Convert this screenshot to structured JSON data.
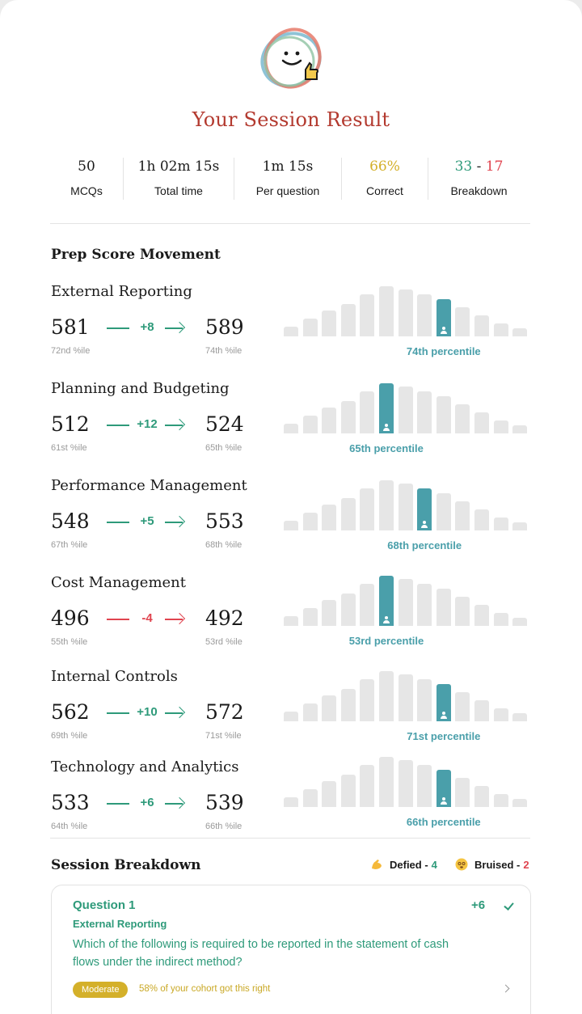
{
  "header": {
    "title": "Your Session Result"
  },
  "stats": [
    {
      "value": "50",
      "label": "MCQs"
    },
    {
      "value": "1h 02m 15s",
      "label": "Total time"
    },
    {
      "value": "1m 15s",
      "label": "Per question"
    },
    {
      "value": "66%",
      "label": "Correct"
    },
    {
      "correct": "33",
      "sep": "-",
      "wrong": "17",
      "label": "Breakdown"
    }
  ],
  "colors": {
    "title": "#b33a2f",
    "positive": "#2e9a7a",
    "negative": "#e0444f",
    "percentile": "#4a9faa",
    "correct_pct": "#d4b02a"
  },
  "prep": {
    "title": "Prep Score Movement",
    "subjects": [
      {
        "name": "External Reporting",
        "from": "581",
        "from_pct": "72nd %ile",
        "delta": "+8",
        "to": "589",
        "to_pct": "74th %ile",
        "positive": true,
        "percentile_label": "74th percentile",
        "bar_index": 8
      },
      {
        "name": "Planning and Budgeting",
        "from": "512",
        "from_pct": "61st %ile",
        "delta": "+12",
        "to": "524",
        "to_pct": "65th %ile",
        "positive": true,
        "percentile_label": "65th percentile",
        "bar_index": 5
      },
      {
        "name": "Performance Management",
        "from": "548",
        "from_pct": "67th %ile",
        "delta": "+5",
        "to": "553",
        "to_pct": "68th %ile",
        "positive": true,
        "percentile_label": "68th percentile",
        "bar_index": 7
      },
      {
        "name": "Cost Management",
        "from": "496",
        "from_pct": "55th %ile",
        "delta": "-4",
        "to": "492",
        "to_pct": "53rd %ile",
        "positive": false,
        "percentile_label": "53rd percentile",
        "bar_index": 5
      },
      {
        "name": "Internal Controls",
        "from": "562",
        "from_pct": "69th %ile",
        "delta": "+10",
        "to": "572",
        "to_pct": "71st %ile",
        "positive": true,
        "percentile_label": "71st percentile",
        "bar_index": 8
      },
      {
        "name": "Technology and Analytics",
        "from": "533",
        "from_pct": "64th %ile",
        "delta": "+6",
        "to": "539",
        "to_pct": "66th %ile",
        "positive": true,
        "percentile_label": "66th percentile",
        "bar_index": 8
      }
    ]
  },
  "breakdown": {
    "title": "Session Breakdown",
    "defied_label": "Defied -",
    "defied_count": "4",
    "bruised_label": "Bruised -",
    "bruised_count": "2"
  },
  "question": {
    "title": "Question 1",
    "subject": "External Reporting",
    "text": "Which of the following is required to be reported in the statement of cash flows under the indirect method?",
    "delta": "+6",
    "difficulty": "Moderate",
    "cohort": "58% of your cohort got this right"
  }
}
